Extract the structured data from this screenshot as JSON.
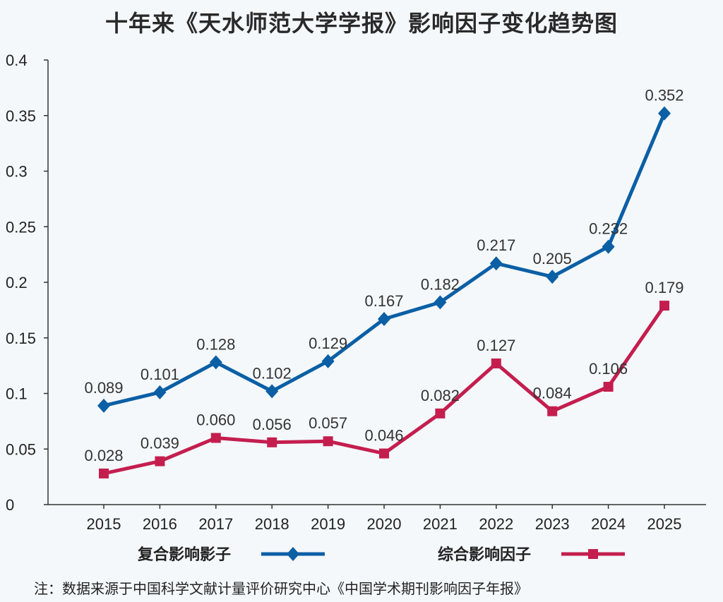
{
  "chart_data": {
    "type": "line",
    "title": "十年来《天水师范大学学报》影响因子变化趋势图",
    "x": [
      "2015",
      "2016",
      "2017",
      "2018",
      "2019",
      "2020",
      "2021",
      "2022",
      "2023",
      "2024",
      "2025"
    ],
    "series": [
      {
        "name": "复合影响影子",
        "color": "#0b5fa5",
        "marker": "diamond",
        "values": [
          0.089,
          0.101,
          0.128,
          0.102,
          0.129,
          0.167,
          0.182,
          0.217,
          0.205,
          0.232,
          0.352
        ],
        "labels": [
          "0.089",
          "0.101",
          "0.128",
          "0.102",
          "0.129",
          "0.167",
          "0.182",
          "0.217",
          "0.205",
          "0.232",
          "0.352"
        ]
      },
      {
        "name": "综合影响因子",
        "color": "#c41e4e",
        "marker": "square",
        "values": [
          0.028,
          0.039,
          0.06,
          0.056,
          0.057,
          0.046,
          0.082,
          0.127,
          0.084,
          0.106,
          0.179
        ],
        "labels": [
          "0.028",
          "0.039",
          "0.060",
          "0.056",
          "0.057",
          "0.046",
          "0.082",
          "0.127",
          "0.084",
          "0.106",
          "0.179"
        ]
      }
    ],
    "ylim": [
      0,
      0.4
    ],
    "yticks": [
      "0",
      "0.05",
      "0.1",
      "0.15",
      "0.2",
      "0.25",
      "0.3",
      "0.35",
      "0.4"
    ],
    "xlabel": "",
    "ylabel": "",
    "grid": false,
    "legend_position": "bottom"
  },
  "note": "注：数据来源于中国科学文献计量评价研究中心《中国学术期刊影响因子年报》"
}
